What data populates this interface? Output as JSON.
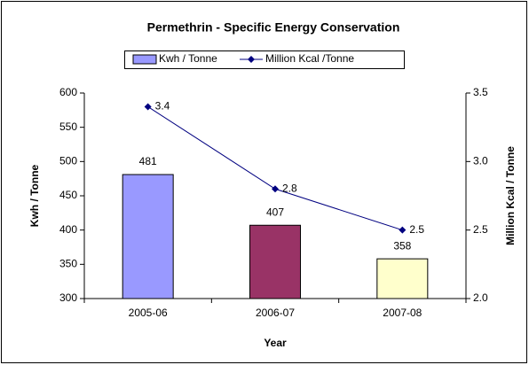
{
  "chart_data": {
    "type": "bar",
    "title": "Permethrin - Specific Energy Conservation",
    "xlabel": "Year",
    "ylabel": "Kwh / Tonne",
    "y2label": "Million Kcal / Tonne",
    "categories": [
      "2005-06",
      "2006-07",
      "2007-08"
    ],
    "series": [
      {
        "name": "Kwh / Tonne",
        "type": "bar",
        "color": "#9999ff",
        "colors": [
          "#9999ff",
          "#993366",
          "#ffffcc"
        ],
        "values": [
          481,
          407,
          358
        ]
      },
      {
        "name": "Million Kcal /Tonne",
        "type": "line",
        "axis": "y2",
        "color": "#000080",
        "values": [
          3.4,
          2.8,
          2.5
        ]
      }
    ],
    "ylim": [
      300,
      600
    ],
    "yticks": [
      300,
      350,
      400,
      450,
      500,
      550,
      600
    ],
    "y2lim": [
      2.0,
      3.5
    ],
    "y2ticks": [
      {
        "value": 2.0,
        "label": "2.0"
      },
      {
        "value": 2.5,
        "label": "2.5"
      },
      {
        "value": 3.0,
        "label": "3.0"
      },
      {
        "value": 3.5,
        "label": "3.5"
      }
    ],
    "legend": "top"
  }
}
